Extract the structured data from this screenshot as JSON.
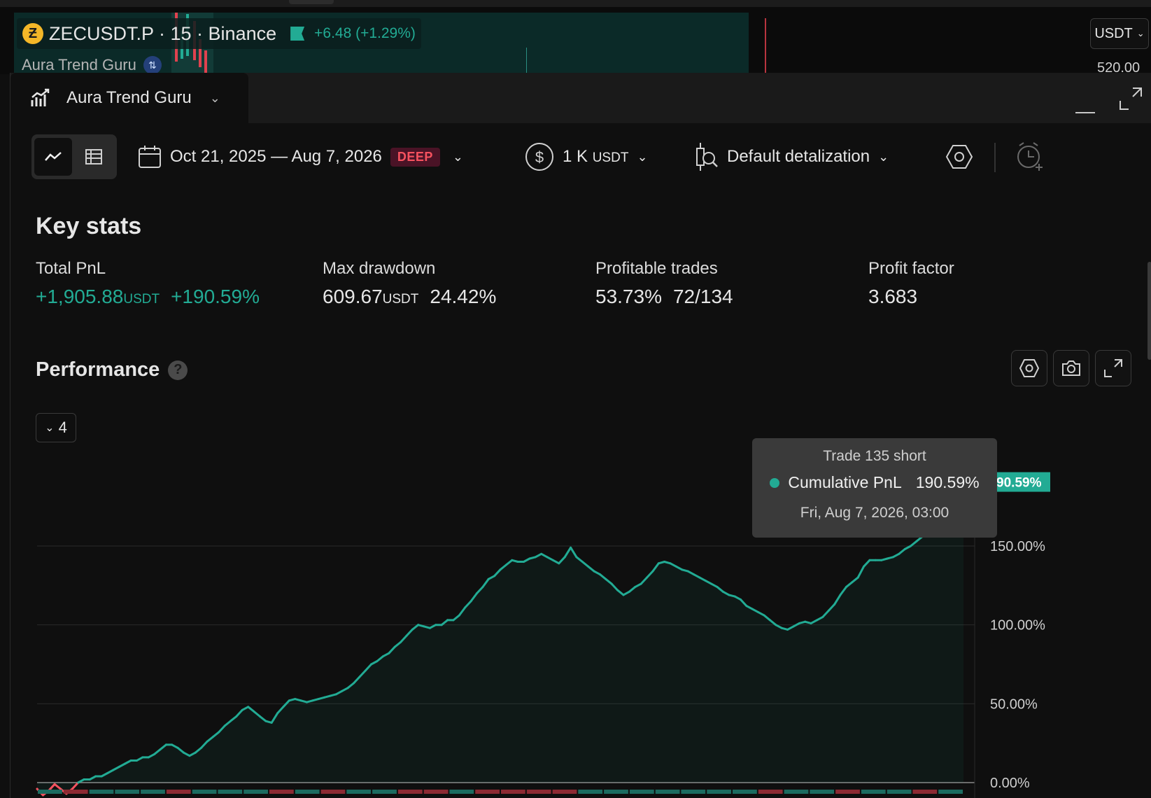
{
  "header": {
    "symbol": "ZECUSDT.P · 15 · Binance",
    "coin_glyph": "Ƶ",
    "change": "+6.48 (+1.29%)",
    "indicator_name": "Aura Trend Guru",
    "currency_button": "USDT",
    "price_label": "520.00"
  },
  "panel": {
    "tab_label": "Aura Trend Guru",
    "toolbar": {
      "date_range": "Oct 21, 2025 — Aug 7, 2026",
      "deep_badge": "DEEP",
      "capital_amount": "1 K",
      "capital_unit": "USDT",
      "detalization": "Default detalization"
    },
    "key_stats": {
      "title": "Key stats",
      "items": [
        {
          "label": "Total PnL",
          "value": "+1,905.88",
          "unit": "USDT",
          "extra": "+190.59%"
        },
        {
          "label": "Max drawdown",
          "value": "609.67",
          "unit": "USDT",
          "extra": "24.42%"
        },
        {
          "label": "Profitable trades",
          "value": "53.73%",
          "unit": "",
          "extra": "72/134"
        },
        {
          "label": "Profit factor",
          "value": "3.683",
          "unit": "",
          "extra": ""
        }
      ]
    },
    "performance": {
      "title": "Performance",
      "help_glyph": "?",
      "series_count": "4"
    },
    "tooltip": {
      "title": "Trade 135 short",
      "series_name": "Cumulative PnL",
      "value": "190.59%",
      "date": "Fri, Aug 7, 2026, 03:00"
    }
  },
  "colors": {
    "accent": "#22ab94",
    "negative": "#f7525f",
    "background": "#0f0f0f"
  },
  "chart_data": {
    "type": "area",
    "ylim": [
      -30,
      200
    ],
    "y_ticks": [
      0,
      50,
      100,
      150
    ],
    "y_tick_labels": [
      "0.00%",
      "50.00%",
      "100.00%",
      "150.00%"
    ],
    "last_value_label": "190.59%",
    "series": [
      {
        "name": "Cumulative PnL",
        "values": [
          -4,
          -8,
          -5,
          -1,
          -4,
          -7,
          -4,
          0,
          2,
          2,
          4,
          4,
          6,
          8,
          10,
          12,
          14,
          14,
          16,
          16,
          18,
          21,
          24,
          24,
          22,
          19,
          17,
          19,
          22,
          26,
          29,
          32,
          36,
          39,
          42,
          46,
          48,
          45,
          42,
          39,
          38,
          44,
          48,
          52,
          53,
          52,
          51,
          52,
          53,
          54,
          55,
          56,
          58,
          60,
          63,
          67,
          71,
          75,
          77,
          80,
          82,
          86,
          89,
          93,
          97,
          100,
          99,
          98,
          100,
          100,
          103,
          103,
          106,
          111,
          115,
          120,
          124,
          129,
          131,
          135,
          138,
          141,
          140,
          140,
          142,
          143,
          145,
          143,
          141,
          139,
          143,
          149,
          143,
          140,
          137,
          134,
          132,
          129,
          126,
          122,
          119,
          121,
          124,
          126,
          130,
          134,
          139,
          140,
          139,
          137,
          135,
          134,
          132,
          130,
          128,
          126,
          124,
          121,
          119,
          118,
          116,
          112,
          110,
          108,
          106,
          103,
          100,
          98,
          97,
          99,
          101,
          102,
          101,
          103,
          105,
          109,
          113,
          119,
          124,
          127,
          130,
          137,
          141,
          141,
          141,
          142,
          143,
          145,
          148,
          150,
          153,
          156,
          159,
          162,
          166,
          170,
          176,
          182,
          190.59
        ]
      }
    ],
    "trade_strip": [
      "win",
      "loss",
      "win",
      "win",
      "win",
      "loss",
      "win",
      "win",
      "win",
      "loss",
      "win",
      "loss",
      "win",
      "win",
      "loss",
      "loss",
      "win",
      "loss",
      "loss",
      "loss",
      "loss",
      "win",
      "win",
      "win",
      "win",
      "win",
      "win",
      "win",
      "loss",
      "win",
      "win",
      "loss",
      "win",
      "win",
      "loss",
      "win"
    ]
  }
}
